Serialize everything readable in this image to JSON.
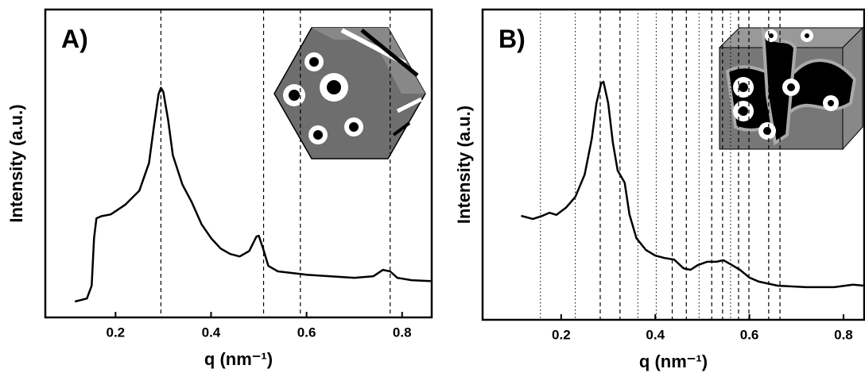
{
  "chart_data": [
    {
      "type": "line",
      "panel_label": "A)",
      "xlabel": "q (nm⁻¹)",
      "ylabel": "Intensity (a.u.)",
      "x": [
        0.115,
        0.14,
        0.15,
        0.155,
        0.16,
        0.17,
        0.19,
        0.22,
        0.25,
        0.27,
        0.28,
        0.29,
        0.295,
        0.3,
        0.31,
        0.32,
        0.34,
        0.36,
        0.38,
        0.4,
        0.42,
        0.44,
        0.46,
        0.48,
        0.495,
        0.5,
        0.51,
        0.52,
        0.54,
        0.6,
        0.7,
        0.74,
        0.76,
        0.775,
        0.79,
        0.82,
        0.86
      ],
      "series": [
        {
          "color": "#000000",
          "values": [
            5.2,
            6.2,
            10.4,
            26.0,
            32.5,
            33.2,
            33.8,
            36.9,
            41.6,
            50.6,
            62.3,
            73.2,
            75.3,
            74.0,
            64.9,
            53.2,
            43.6,
            37.7,
            30.6,
            26.0,
            22.6,
            20.8,
            20.0,
            21.8,
            26.5,
            26.8,
            22.1,
            16.9,
            15.1,
            14.0,
            13.0,
            13.5,
            15.6,
            15.1,
            13.0,
            12.2,
            11.9
          ]
        }
      ],
      "xlim": [
        0.053,
        0.862
      ],
      "ylim": [
        0,
        101
      ],
      "xticks": [
        0.2,
        0.4,
        0.6,
        0.8
      ],
      "dashed_lines": [
        0.295,
        0.51,
        0.587,
        0.775
      ],
      "dotted_lines": []
    },
    {
      "type": "line",
      "panel_label": "B)",
      "xlabel": "q (nm⁻¹)",
      "ylabel": "Intensity (a.u.)",
      "x": [
        0.115,
        0.14,
        0.16,
        0.175,
        0.19,
        0.21,
        0.23,
        0.25,
        0.265,
        0.275,
        0.285,
        0.29,
        0.3,
        0.31,
        0.32,
        0.33,
        0.335,
        0.345,
        0.36,
        0.38,
        0.4,
        0.42,
        0.44,
        0.46,
        0.475,
        0.49,
        0.51,
        0.53,
        0.545,
        0.56,
        0.58,
        0.6,
        0.62,
        0.66,
        0.72,
        0.78,
        0.82,
        0.844
      ],
      "series": [
        {
          "color": "#000000",
          "values": [
            33.5,
            32.5,
            33.5,
            34.5,
            33.8,
            36.1,
            39.6,
            46.8,
            58.3,
            69.8,
            76.2,
            76.7,
            69.8,
            57.0,
            48.1,
            45.5,
            44.2,
            34.0,
            26.3,
            22.5,
            20.7,
            19.9,
            19.4,
            16.6,
            16.1,
            17.6,
            18.7,
            18.7,
            19.2,
            17.9,
            16.1,
            13.6,
            12.3,
            11.0,
            10.5,
            10.5,
            11.3,
            11.0
          ]
        }
      ],
      "xlim": [
        0.033,
        0.844
      ],
      "ylim": [
        0,
        100
      ],
      "xticks": [
        0.2,
        0.4,
        0.6,
        0.8
      ],
      "dashed_lines": [
        0.283,
        0.325,
        0.436,
        0.466,
        0.52,
        0.543,
        0.577,
        0.599,
        0.641,
        0.665
      ],
      "dotted_lines": [
        0.156,
        0.23,
        0.363,
        0.402,
        0.493,
        0.56
      ]
    }
  ]
}
